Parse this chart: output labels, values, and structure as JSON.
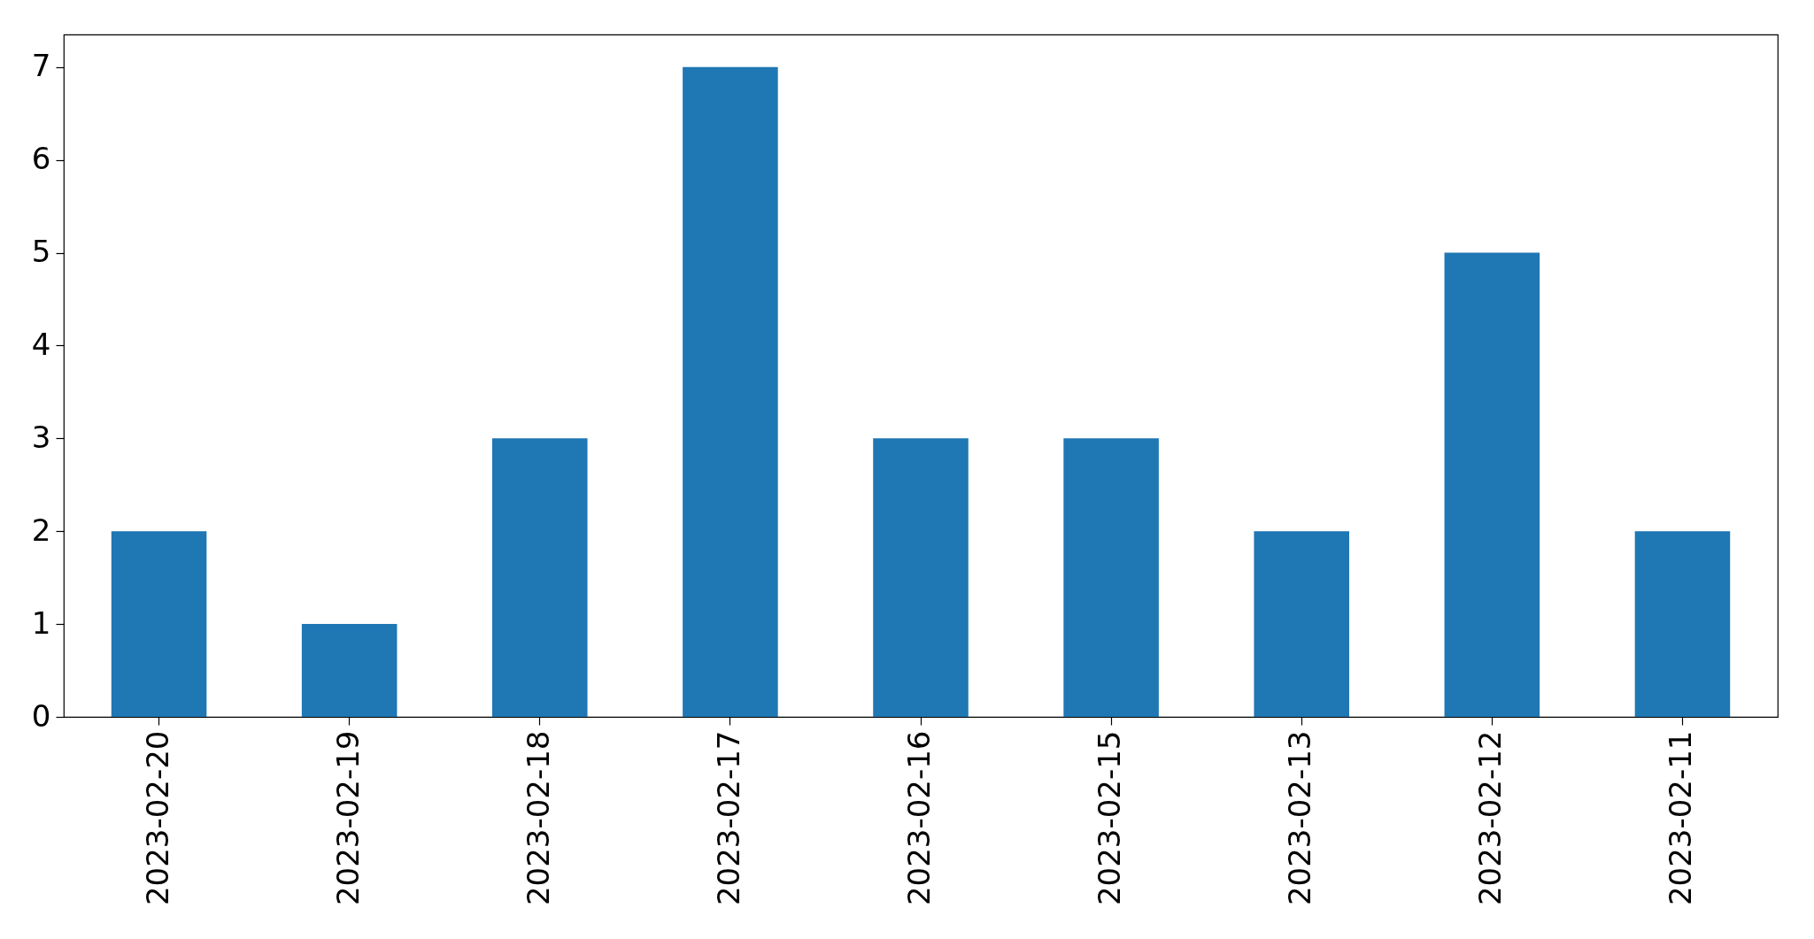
{
  "chart_data": {
    "type": "bar",
    "categories": [
      "2023-02-20",
      "2023-02-19",
      "2023-02-18",
      "2023-02-17",
      "2023-02-16",
      "2023-02-15",
      "2023-02-13",
      "2023-02-12",
      "2023-02-11"
    ],
    "values": [
      2,
      1,
      3,
      7,
      3,
      3,
      2,
      5,
      2
    ],
    "color": "#1f77b4",
    "ylim": [
      0,
      7.35
    ],
    "yticks": [
      0,
      1,
      2,
      3,
      4,
      5,
      6,
      7
    ],
    "grid": false
  }
}
